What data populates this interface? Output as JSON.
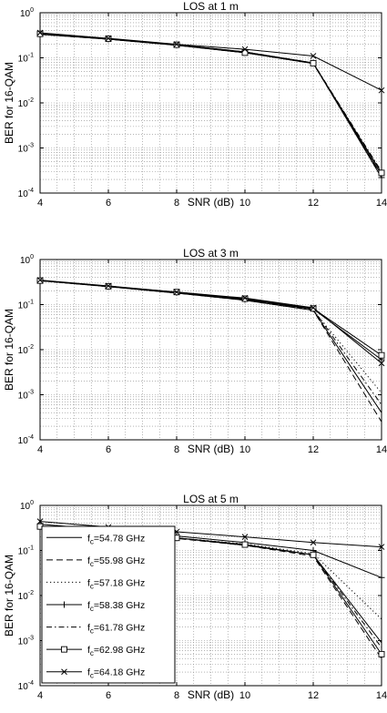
{
  "chart_data": [
    {
      "type": "line",
      "title": "LOS at 1 m",
      "xlabel": "SNR (dB)",
      "ylabel": "BER for 16-QAM",
      "xlim": [
        4,
        14
      ],
      "ylim": [
        0.0001,
        1
      ],
      "y_scale": "log",
      "grid": true,
      "x_ticks": [
        "4",
        "6",
        "8",
        "10",
        "12",
        "14"
      ],
      "x": [
        4,
        6,
        8,
        10,
        12,
        14
      ],
      "series": [
        {
          "name": "fc=54.78 GHz",
          "values": [
            0.33,
            0.26,
            0.19,
            0.13,
            0.075,
            0.00025
          ]
        },
        {
          "name": "fc=55.98 GHz",
          "values": [
            0.33,
            0.26,
            0.19,
            0.13,
            0.075,
            0.00023
          ]
        },
        {
          "name": "fc=57.18 GHz",
          "values": [
            0.34,
            0.26,
            0.19,
            0.13,
            0.076,
            0.00028
          ]
        },
        {
          "name": "fc=58.38 GHz",
          "values": [
            0.34,
            0.26,
            0.195,
            0.135,
            0.077,
            0.00022
          ]
        },
        {
          "name": "fc=61.78 GHz",
          "values": [
            0.34,
            0.265,
            0.195,
            0.135,
            0.077,
            0.0003
          ]
        },
        {
          "name": "fc=62.98 GHz",
          "values": [
            0.34,
            0.265,
            0.195,
            0.13,
            0.076,
            0.00028
          ]
        },
        {
          "name": "fc=64.18 GHz",
          "values": [
            0.36,
            0.27,
            0.2,
            0.155,
            0.11,
            0.019
          ]
        }
      ]
    },
    {
      "type": "line",
      "title": "LOS at 3 m",
      "xlabel": "SNR (dB)",
      "ylabel": "BER for 16-QAM",
      "xlim": [
        4,
        14
      ],
      "ylim": [
        0.0001,
        1
      ],
      "y_scale": "log",
      "grid": true,
      "x_ticks": [
        "4",
        "6",
        "8",
        "10",
        "12",
        "14"
      ],
      "x": [
        4,
        6,
        8,
        10,
        12,
        14
      ],
      "series": [
        {
          "name": "fc=54.78 GHz",
          "values": [
            0.34,
            0.25,
            0.18,
            0.125,
            0.075,
            0.0004
          ]
        },
        {
          "name": "fc=55.98 GHz",
          "values": [
            0.34,
            0.25,
            0.18,
            0.125,
            0.075,
            0.00025
          ]
        },
        {
          "name": "fc=57.18 GHz",
          "values": [
            0.34,
            0.25,
            0.18,
            0.13,
            0.075,
            0.0011
          ]
        },
        {
          "name": "fc=58.38 GHz",
          "values": [
            0.34,
            0.255,
            0.185,
            0.13,
            0.08,
            0.006
          ]
        },
        {
          "name": "fc=61.78 GHz",
          "values": [
            0.34,
            0.255,
            0.185,
            0.13,
            0.078,
            0.0006
          ]
        },
        {
          "name": "fc=62.98 GHz",
          "values": [
            0.34,
            0.255,
            0.19,
            0.135,
            0.082,
            0.0075
          ]
        },
        {
          "name": "fc=64.18 GHz",
          "values": [
            0.35,
            0.26,
            0.19,
            0.14,
            0.085,
            0.005
          ]
        }
      ]
    },
    {
      "type": "line",
      "title": "LOS at 5 m",
      "xlabel": "SNR (dB)",
      "ylabel": "BER for 16-QAM",
      "xlim": [
        4,
        14
      ],
      "ylim": [
        0.0001,
        1
      ],
      "y_scale": "log",
      "grid": true,
      "x_ticks": [
        "4",
        "6",
        "8",
        "10",
        "12",
        "14"
      ],
      "x": [
        4,
        6,
        8,
        10,
        12,
        14
      ],
      "legend": "left",
      "series": [
        {
          "name": "fc=54.78 GHz",
          "values": [
            0.35,
            0.26,
            0.19,
            0.13,
            0.08,
            0.0009
          ]
        },
        {
          "name": "fc=55.98 GHz",
          "values": [
            0.34,
            0.255,
            0.185,
            0.13,
            0.075,
            0.0004
          ]
        },
        {
          "name": "fc=57.18 GHz",
          "values": [
            0.34,
            0.26,
            0.19,
            0.14,
            0.085,
            0.003
          ]
        },
        {
          "name": "fc=58.38 GHz",
          "values": [
            0.38,
            0.29,
            0.21,
            0.15,
            0.1,
            0.025
          ]
        },
        {
          "name": "fc=61.78 GHz",
          "values": [
            0.34,
            0.26,
            0.19,
            0.135,
            0.08,
            0.0007
          ]
        },
        {
          "name": "fc=62.98 GHz",
          "values": [
            0.34,
            0.26,
            0.19,
            0.135,
            0.08,
            0.0005
          ]
        },
        {
          "name": "fc=64.18 GHz",
          "values": [
            0.44,
            0.33,
            0.26,
            0.2,
            0.15,
            0.12
          ]
        }
      ]
    }
  ],
  "legend": {
    "entries": [
      {
        "sub": "c",
        "text": "=54.78 GHz"
      },
      {
        "sub": "c",
        "text": "=55.98 GHz"
      },
      {
        "sub": "c",
        "text": "=57.18 GHz"
      },
      {
        "sub": "c",
        "text": "=58.38 GHz"
      },
      {
        "sub": "c",
        "text": "=61.78 GHz"
      },
      {
        "sub": "c",
        "text": "=62.98 GHz"
      },
      {
        "sub": "c",
        "text": "=64.18 GHz"
      }
    ],
    "prefix": "f"
  },
  "y_tick_labels": {
    "base": "10",
    "exponents": [
      "0",
      "-1",
      "-2",
      "-3",
      "-4"
    ]
  }
}
